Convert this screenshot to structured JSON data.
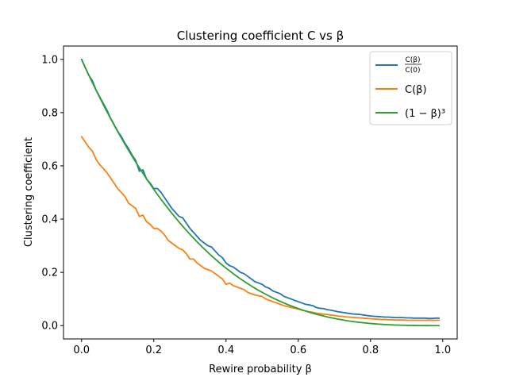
{
  "chart_data": {
    "type": "line",
    "title": "Clustering coefficient C vs β",
    "xlabel": "Rewire probability β",
    "ylabel": "Clustering coefficient",
    "xlim": [
      -0.05,
      1.04
    ],
    "ylim": [
      -0.05,
      1.05
    ],
    "xticks": [
      "0.0",
      "0.2",
      "0.4",
      "0.6",
      "0.8",
      "1.0"
    ],
    "yticks": [
      "0.0",
      "0.2",
      "0.4",
      "0.6",
      "0.8",
      "1.0"
    ],
    "legend_position": "top-right",
    "grid": false,
    "series": [
      {
        "name": "C(β)/C(0)",
        "legend_numerator": "C(β)",
        "legend_denominator": "C(0)",
        "color": "#1f77b4",
        "x": [
          0.0,
          0.01,
          0.02,
          0.03,
          0.04,
          0.05,
          0.06,
          0.07,
          0.08,
          0.09,
          0.1,
          0.11,
          0.12,
          0.13,
          0.14,
          0.15,
          0.16,
          0.17,
          0.18,
          0.19,
          0.2,
          0.21,
          0.22,
          0.23,
          0.24,
          0.25,
          0.26,
          0.27,
          0.28,
          0.29,
          0.3,
          0.31,
          0.32,
          0.33,
          0.34,
          0.35,
          0.36,
          0.37,
          0.38,
          0.39,
          0.4,
          0.41,
          0.42,
          0.43,
          0.44,
          0.45,
          0.46,
          0.47,
          0.48,
          0.49,
          0.5,
          0.51,
          0.52,
          0.53,
          0.54,
          0.55,
          0.56,
          0.57,
          0.58,
          0.59,
          0.6,
          0.61,
          0.62,
          0.63,
          0.64,
          0.65,
          0.66,
          0.67,
          0.68,
          0.69,
          0.7,
          0.71,
          0.72,
          0.73,
          0.74,
          0.75,
          0.76,
          0.77,
          0.78,
          0.79,
          0.8,
          0.81,
          0.82,
          0.83,
          0.84,
          0.85,
          0.86,
          0.87,
          0.88,
          0.89,
          0.9,
          0.91,
          0.92,
          0.93,
          0.94,
          0.95,
          0.96,
          0.97,
          0.98,
          0.99
        ],
        "y": [
          1.0,
          0.97,
          0.94,
          0.92,
          0.885,
          0.86,
          0.835,
          0.81,
          0.78,
          0.755,
          0.73,
          0.71,
          0.685,
          0.665,
          0.64,
          0.62,
          0.58,
          0.585,
          0.55,
          0.535,
          0.515,
          0.515,
          0.5,
          0.48,
          0.46,
          0.44,
          0.425,
          0.41,
          0.405,
          0.385,
          0.365,
          0.35,
          0.335,
          0.32,
          0.31,
          0.3,
          0.295,
          0.28,
          0.265,
          0.255,
          0.235,
          0.225,
          0.22,
          0.21,
          0.2,
          0.195,
          0.185,
          0.175,
          0.165,
          0.16,
          0.155,
          0.145,
          0.14,
          0.13,
          0.125,
          0.12,
          0.11,
          0.105,
          0.1,
          0.095,
          0.09,
          0.085,
          0.08,
          0.078,
          0.075,
          0.068,
          0.065,
          0.064,
          0.06,
          0.058,
          0.055,
          0.052,
          0.05,
          0.048,
          0.046,
          0.044,
          0.043,
          0.042,
          0.04,
          0.038,
          0.036,
          0.035,
          0.034,
          0.033,
          0.032,
          0.032,
          0.031,
          0.03,
          0.03,
          0.03,
          0.029,
          0.029,
          0.028,
          0.028,
          0.028,
          0.028,
          0.027,
          0.027,
          0.028,
          0.028
        ]
      },
      {
        "name": "C(β)",
        "color": "#ff7f0e",
        "x": [
          0.0,
          0.01,
          0.02,
          0.03,
          0.04,
          0.05,
          0.06,
          0.07,
          0.08,
          0.09,
          0.1,
          0.11,
          0.12,
          0.13,
          0.14,
          0.15,
          0.16,
          0.17,
          0.18,
          0.19,
          0.2,
          0.21,
          0.22,
          0.23,
          0.24,
          0.25,
          0.26,
          0.27,
          0.28,
          0.29,
          0.3,
          0.31,
          0.32,
          0.33,
          0.34,
          0.35,
          0.36,
          0.37,
          0.38,
          0.39,
          0.4,
          0.41,
          0.42,
          0.43,
          0.44,
          0.45,
          0.46,
          0.47,
          0.48,
          0.49,
          0.5,
          0.51,
          0.52,
          0.53,
          0.54,
          0.55,
          0.56,
          0.57,
          0.58,
          0.59,
          0.6,
          0.61,
          0.62,
          0.63,
          0.64,
          0.65,
          0.66,
          0.67,
          0.68,
          0.69,
          0.7,
          0.71,
          0.72,
          0.73,
          0.74,
          0.75,
          0.76,
          0.77,
          0.78,
          0.79,
          0.8,
          0.81,
          0.82,
          0.83,
          0.84,
          0.85,
          0.86,
          0.87,
          0.88,
          0.89,
          0.9,
          0.91,
          0.92,
          0.93,
          0.94,
          0.95,
          0.96,
          0.97,
          0.98,
          0.99
        ],
        "y": [
          0.71,
          0.69,
          0.67,
          0.655,
          0.625,
          0.605,
          0.59,
          0.575,
          0.555,
          0.535,
          0.515,
          0.5,
          0.485,
          0.46,
          0.45,
          0.44,
          0.41,
          0.415,
          0.39,
          0.38,
          0.365,
          0.365,
          0.355,
          0.34,
          0.32,
          0.31,
          0.3,
          0.29,
          0.285,
          0.27,
          0.25,
          0.25,
          0.235,
          0.225,
          0.215,
          0.21,
          0.205,
          0.195,
          0.185,
          0.175,
          0.155,
          0.16,
          0.15,
          0.145,
          0.14,
          0.135,
          0.125,
          0.12,
          0.115,
          0.112,
          0.11,
          0.1,
          0.095,
          0.09,
          0.085,
          0.08,
          0.075,
          0.072,
          0.068,
          0.065,
          0.062,
          0.058,
          0.055,
          0.052,
          0.05,
          0.047,
          0.045,
          0.043,
          0.042,
          0.04,
          0.038,
          0.036,
          0.035,
          0.033,
          0.032,
          0.031,
          0.03,
          0.029,
          0.028,
          0.027,
          0.026,
          0.025,
          0.024,
          0.023,
          0.023,
          0.022,
          0.022,
          0.021,
          0.021,
          0.021,
          0.02,
          0.02,
          0.02,
          0.02,
          0.02,
          0.02,
          0.02,
          0.02,
          0.02,
          0.02
        ]
      },
      {
        "name": "(1 − β)³",
        "color": "#2ca02c",
        "formula": "(1-x)^3",
        "x_range": [
          0.0,
          0.99
        ]
      }
    ]
  }
}
